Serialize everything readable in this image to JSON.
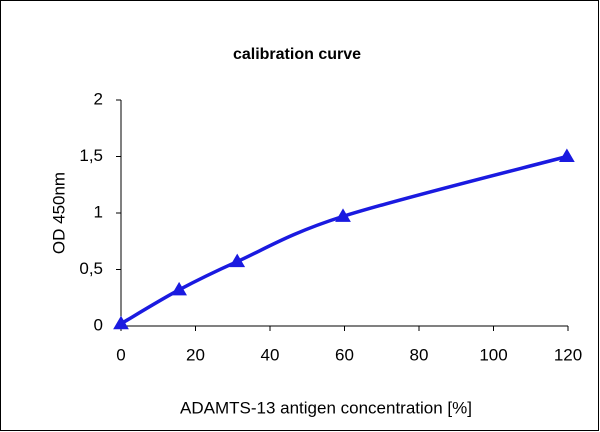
{
  "chart_data": {
    "type": "line",
    "title": "calibration curve",
    "x_label": "ADAMTS-13 antigen concentration [%]",
    "y_label": "OD 450nm",
    "x": [
      0,
      15.6,
      31.2,
      59.6,
      119.7
    ],
    "values": [
      0.02,
      0.32,
      0.57,
      0.97,
      1.5
    ],
    "color": "#1a1ae0",
    "smooth": true,
    "marker": "triangle",
    "xlim": [
      0,
      120
    ],
    "xticks": [
      0,
      20,
      40,
      60,
      80,
      100,
      120
    ],
    "ylim": [
      0,
      2
    ],
    "yticks": [
      0,
      {
        "value": 0.5,
        "label": "0,5"
      },
      1,
      {
        "value": 1.5,
        "label": "1,5"
      },
      2
    ],
    "grid": false
  }
}
